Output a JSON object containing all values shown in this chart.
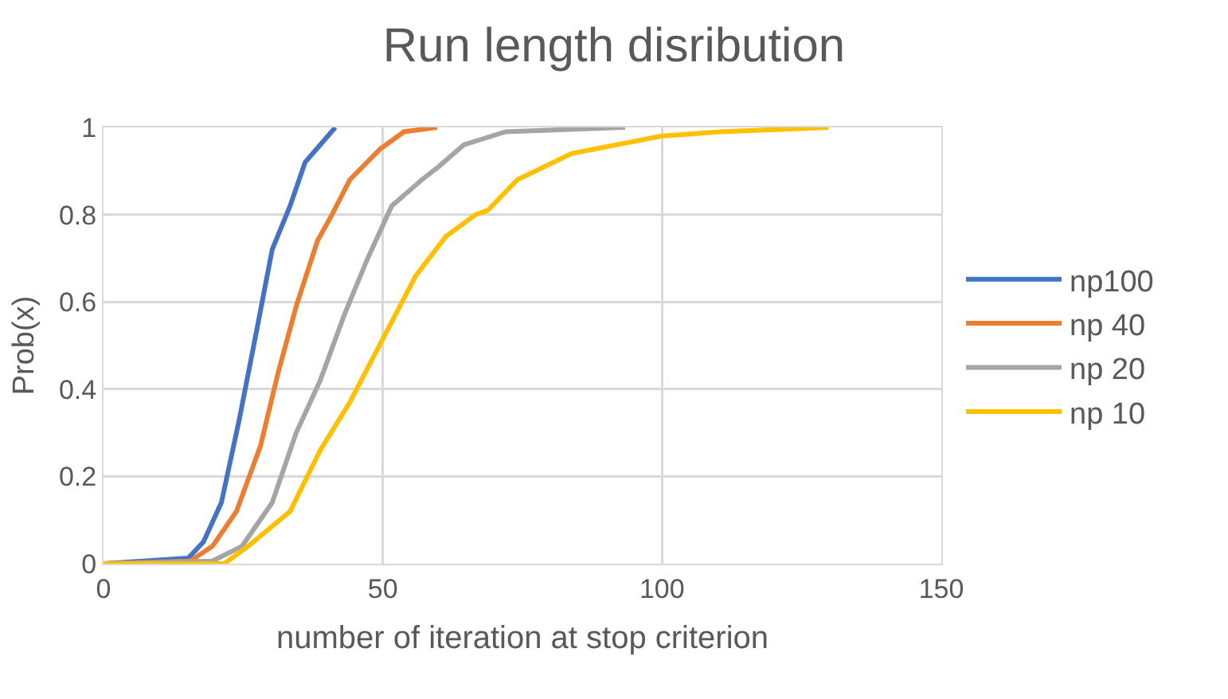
{
  "chart_data": {
    "type": "line",
    "title": "Run length disribution",
    "xlabel": "number of iteration at stop criterion",
    "ylabel": "Prob(x)",
    "xlim": [
      0,
      150
    ],
    "xticks": [
      0,
      50,
      100,
      150
    ],
    "ylim": [
      0,
      1
    ],
    "yticks": [
      0,
      0.2,
      0.4,
      0.6,
      0.8,
      1
    ],
    "grid": true,
    "legend": "right",
    "marker": "none",
    "line_style": "solid",
    "series": [
      {
        "name": "np100",
        "color": "#4472c4",
        "x": [
          0,
          15.2,
          17.9,
          21.1,
          24.3,
          27.5,
          30.2,
          33.4,
          36.1,
          41.5
        ],
        "values": [
          0,
          0.013,
          0.05,
          0.14,
          0.33,
          0.54,
          0.72,
          0.82,
          0.92,
          1
        ]
      },
      {
        "name": "np 40",
        "color": "#ed7d31",
        "x": [
          0,
          15.5,
          19.5,
          23.8,
          28.1,
          31.3,
          34.5,
          38.3,
          40.9,
          44.1,
          49.5,
          53.8,
          59.7
        ],
        "values": [
          0,
          0.006,
          0.04,
          0.12,
          0.27,
          0.44,
          0.59,
          0.74,
          0.8,
          0.88,
          0.95,
          0.99,
          1
        ]
      },
      {
        "name": "np 20",
        "color": "#a5a5a5",
        "x": [
          0,
          19.5,
          24.8,
          30.2,
          34.5,
          38.8,
          43.1,
          47.3,
          51.6,
          57,
          60,
          64.5,
          72,
          93.4
        ],
        "values": [
          0,
          0.006,
          0.04,
          0.14,
          0.3,
          0.42,
          0.57,
          0.7,
          0.82,
          0.88,
          0.91,
          0.96,
          0.99,
          1
        ]
      },
      {
        "name": "np 10",
        "color": "#ffc000",
        "x": [
          0,
          21.6,
          25.9,
          33.4,
          38.8,
          44.1,
          50.6,
          55.9,
          61.3,
          66.6,
          68.8,
          74.1,
          83.8,
          99.8,
          110.5,
          129.8
        ],
        "values": [
          0,
          0,
          0.04,
          0.12,
          0.26,
          0.37,
          0.53,
          0.66,
          0.75,
          0.8,
          0.81,
          0.88,
          0.94,
          0.98,
          0.99,
          1
        ]
      }
    ]
  }
}
